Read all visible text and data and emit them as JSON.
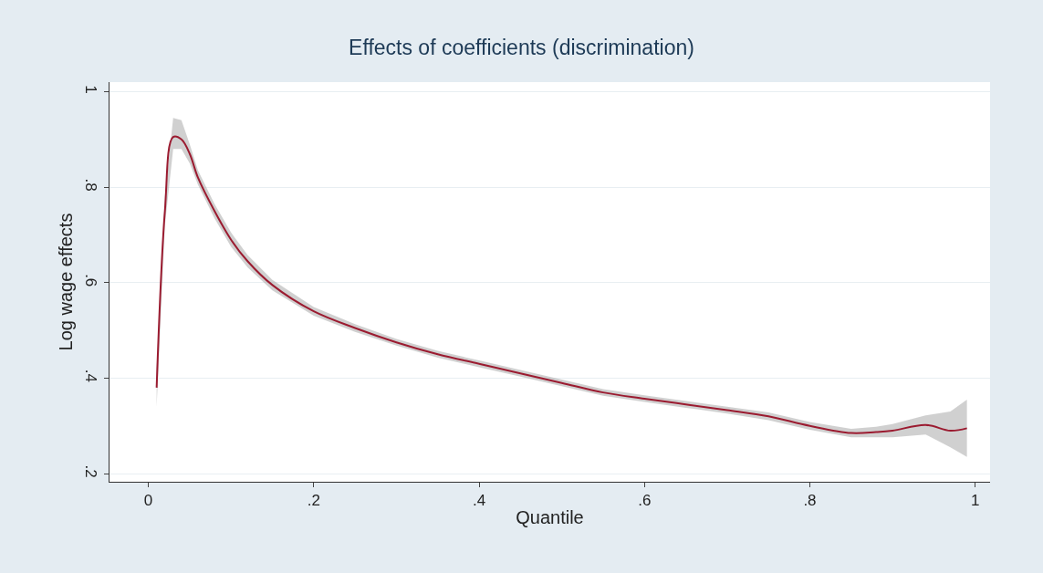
{
  "chart_data": {
    "type": "line",
    "title": "Effects of coefficients (discrimination)",
    "xlabel": "Quantile",
    "ylabel": "Log wage effects",
    "x": [
      0.01,
      0.02,
      0.03,
      0.04,
      0.05,
      0.06,
      0.08,
      0.1,
      0.12,
      0.15,
      0.2,
      0.25,
      0.3,
      0.35,
      0.4,
      0.45,
      0.5,
      0.55,
      0.6,
      0.65,
      0.7,
      0.75,
      0.8,
      0.85,
      0.88,
      0.9,
      0.94,
      0.97,
      0.99
    ],
    "series": [
      {
        "color": "#9b1b30",
        "values": [
          0.38,
          0.75,
          0.905,
          0.9,
          0.87,
          0.82,
          0.75,
          0.69,
          0.645,
          0.595,
          0.54,
          0.505,
          0.475,
          0.45,
          0.43,
          0.41,
          0.39,
          0.37,
          0.357,
          0.345,
          0.333,
          0.32,
          0.3,
          0.285,
          0.287,
          0.29,
          0.302,
          0.29,
          0.295
        ],
        "lower": [
          0.34,
          0.72,
          0.88,
          0.88,
          0.85,
          0.805,
          0.735,
          0.675,
          0.632,
          0.584,
          0.531,
          0.497,
          0.468,
          0.443,
          0.423,
          0.403,
          0.383,
          0.363,
          0.35,
          0.338,
          0.326,
          0.312,
          0.292,
          0.276,
          0.276,
          0.276,
          0.282,
          0.255,
          0.235
        ],
        "upper": [
          0.42,
          0.78,
          0.945,
          0.94,
          0.89,
          0.835,
          0.765,
          0.705,
          0.658,
          0.606,
          0.549,
          0.513,
          0.482,
          0.457,
          0.437,
          0.417,
          0.397,
          0.377,
          0.364,
          0.352,
          0.34,
          0.328,
          0.308,
          0.294,
          0.298,
          0.304,
          0.322,
          0.33,
          0.355
        ]
      }
    ],
    "xlim": [
      -0.047,
      1.018
    ],
    "ylim": [
      0.183,
      1.02
    ],
    "xticks": [
      0,
      {
        "value": 0.2,
        "label": ".2"
      },
      {
        "value": 0.4,
        "label": ".4"
      },
      {
        "value": 0.6,
        "label": ".6"
      },
      {
        "value": 0.8,
        "label": ".8"
      },
      1
    ],
    "yticks": [
      {
        "value": 0.2,
        "label": ".2"
      },
      {
        "value": 0.4,
        "label": ".4"
      },
      {
        "value": 0.6,
        "label": ".6"
      },
      {
        "value": 0.8,
        "label": ".8"
      },
      1
    ],
    "grid": "y"
  }
}
